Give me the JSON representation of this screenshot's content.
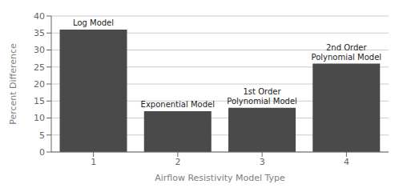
{
  "chart_data": {
    "type": "bar",
    "categories": [
      "1",
      "2",
      "3",
      "4"
    ],
    "values": [
      36,
      12,
      13,
      26
    ],
    "color": "#4a4a4a",
    "annotations": [
      "Log Model",
      "Exponential Model",
      "1st Order\nPolynomial Model",
      "2nd Order\nPolynomial Model"
    ],
    "xlabel": "Airflow Resistivity Model Type",
    "ylabel": "Percent Difference",
    "ylim": [
      0,
      40
    ],
    "yticks": [
      0,
      5,
      10,
      15,
      20,
      25,
      30,
      35,
      40
    ],
    "grid": true
  }
}
